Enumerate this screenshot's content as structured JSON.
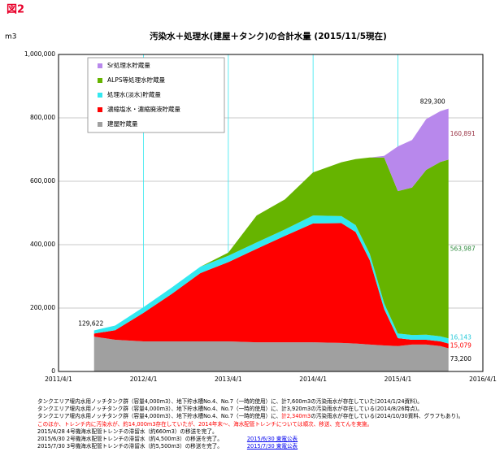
{
  "chart_data": {
    "type": "stacked_area",
    "figure_label": "図2",
    "title": "汚染水＋処理水(建屋＋タンク)の合計水量 (2015/11/5現在)",
    "y_label": "m3",
    "x": [
      "2011/9/1",
      "2011/12/1",
      "2012/4/1",
      "2012/8/1",
      "2012/12/1",
      "2013/4/1",
      "2013/8/1",
      "2013/12/1",
      "2014/4/1",
      "2014/8/1",
      "2014/10/1",
      "2014/12/1",
      "2015/2/1",
      "2015/4/1",
      "2015/6/1",
      "2015/8/1",
      "2015/10/1",
      "2015/11/5"
    ],
    "xlim": [
      "2011/4/1",
      "2016/4/1"
    ],
    "xticks": [
      "2011/4/1",
      "2012/4/1",
      "2013/4/1",
      "2014/4/1",
      "2015/4/1",
      "2016/4/1"
    ],
    "ylim": [
      0,
      1000000
    ],
    "yticks": [
      0,
      {
        "value": 200000,
        "label": "200,000"
      },
      {
        "value": 400000,
        "label": "400,000"
      },
      {
        "value": 600000,
        "label": "600,000"
      },
      {
        "value": 800000,
        "label": "800,000"
      },
      {
        "value": 1000000,
        "label": "1,000,000"
      }
    ],
    "grid": true,
    "legend": "upper left",
    "series": [
      {
        "name": "建屋貯蔵量",
        "color": "#a0a0a0",
        "label_color": "#000000",
        "end_label": "73,200",
        "values": [
          110000,
          100000,
          95000,
          95000,
          95000,
          95000,
          92000,
          92000,
          92000,
          90000,
          88000,
          85000,
          82000,
          80000,
          85000,
          85000,
          80000,
          73200
        ]
      },
      {
        "name": "濃縮塩水・濃縮廃液貯蔵量",
        "color": "#ff0000",
        "label_color": "#ff0000",
        "end_label": "15,079",
        "values": [
          9622,
          30000,
          90000,
          150000,
          215000,
          250000,
          295000,
          336000,
          375000,
          378000,
          352000,
          266000,
          115000,
          25000,
          15000,
          15000,
          15000,
          15079
        ]
      },
      {
        "name": "処理水(淡水)貯蔵量",
        "color": "#33e8f0",
        "label_color": "#22c8d8",
        "end_label": "16,143",
        "values": [
          10000,
          15000,
          18000,
          20000,
          20000,
          20000,
          20000,
          20000,
          25000,
          22000,
          22000,
          20000,
          18000,
          15000,
          15000,
          16000,
          16000,
          16143
        ]
      },
      {
        "name": "ALPS等処理水貯蔵量",
        "color": "#66b400",
        "label_color": "#2e8b3e",
        "end_label": "563,987",
        "values": [
          0,
          0,
          0,
          0,
          0,
          10000,
          85000,
          95000,
          136000,
          170000,
          208000,
          304000,
          460000,
          449000,
          465000,
          520000,
          550000,
          563987
        ]
      },
      {
        "name": "Sr処理水貯蔵量",
        "color": "#b888ec",
        "label_color": "#993344",
        "end_label": "160,891",
        "values": [
          0,
          0,
          0,
          0,
          0,
          0,
          0,
          0,
          0,
          0,
          0,
          0,
          5000,
          141000,
          150000,
          160000,
          160000,
          160891
        ]
      }
    ],
    "annotations": [
      {
        "text": "129,622",
        "x": "2011/9/1",
        "value": 129622
      },
      {
        "text": "829,300",
        "x": "2015/11/5",
        "value": 829300
      }
    ],
    "notes": [
      [
        {
          "text": "タンクエリア堰内水用ノッチタンク群（容量4,000m3）、地下貯水槽No.4、No.7（一時的使用）に、計7,600m3の汚染雨水が存在していた(2014/1/24資料)。",
          "color": "#000000"
        }
      ],
      [
        {
          "text": "タンクエリア堰内水用ノッチタンク群（容量4,000m3）、地下貯水槽No.4、No.7（一時的使用）に、計3,920m3の汚染雨水が存在している(2014/8/26時点)。",
          "color": "#000000"
        }
      ],
      [
        {
          "text": "タンクエリア堰内水用ノッチタンク群（容量4,000m3）、地下貯水槽No.4、No.7（一時的使用）に、",
          "color": "#000000"
        },
        {
          "text": "計2,340m3",
          "color": "#ff0000"
        },
        {
          "text": "の汚染雨水が存在している(2014/10/30資料、グラフもあり)。",
          "color": "#000000"
        }
      ],
      [
        {
          "text": "このほか、トレンチ内に汚染水が、約14,000m3存在していたが、2014年末～、海水配管トレンチについては順次、移送、充てんを実施。",
          "color": "#ff0000"
        }
      ],
      [
        {
          "text": "2015/4/28 4号機海水配管トレンチの滞留水（約660m3）の移送を完了。",
          "color": "#000000"
        }
      ],
      [
        {
          "text": "2015/6/30 2号機海水配管トレンチの滞留水（約4,500m3）の移送を完了。",
          "color": "#000000"
        },
        {
          "text": "2015/6/30 東電公表",
          "link": true
        }
      ],
      [
        {
          "text": "2015/7/30 3号機海水配管トレンチの滞留水（約5,500m3）の移送を完了。",
          "color": "#000000"
        },
        {
          "text": "2015/7/30 東電公表",
          "link": true
        }
      ]
    ]
  }
}
